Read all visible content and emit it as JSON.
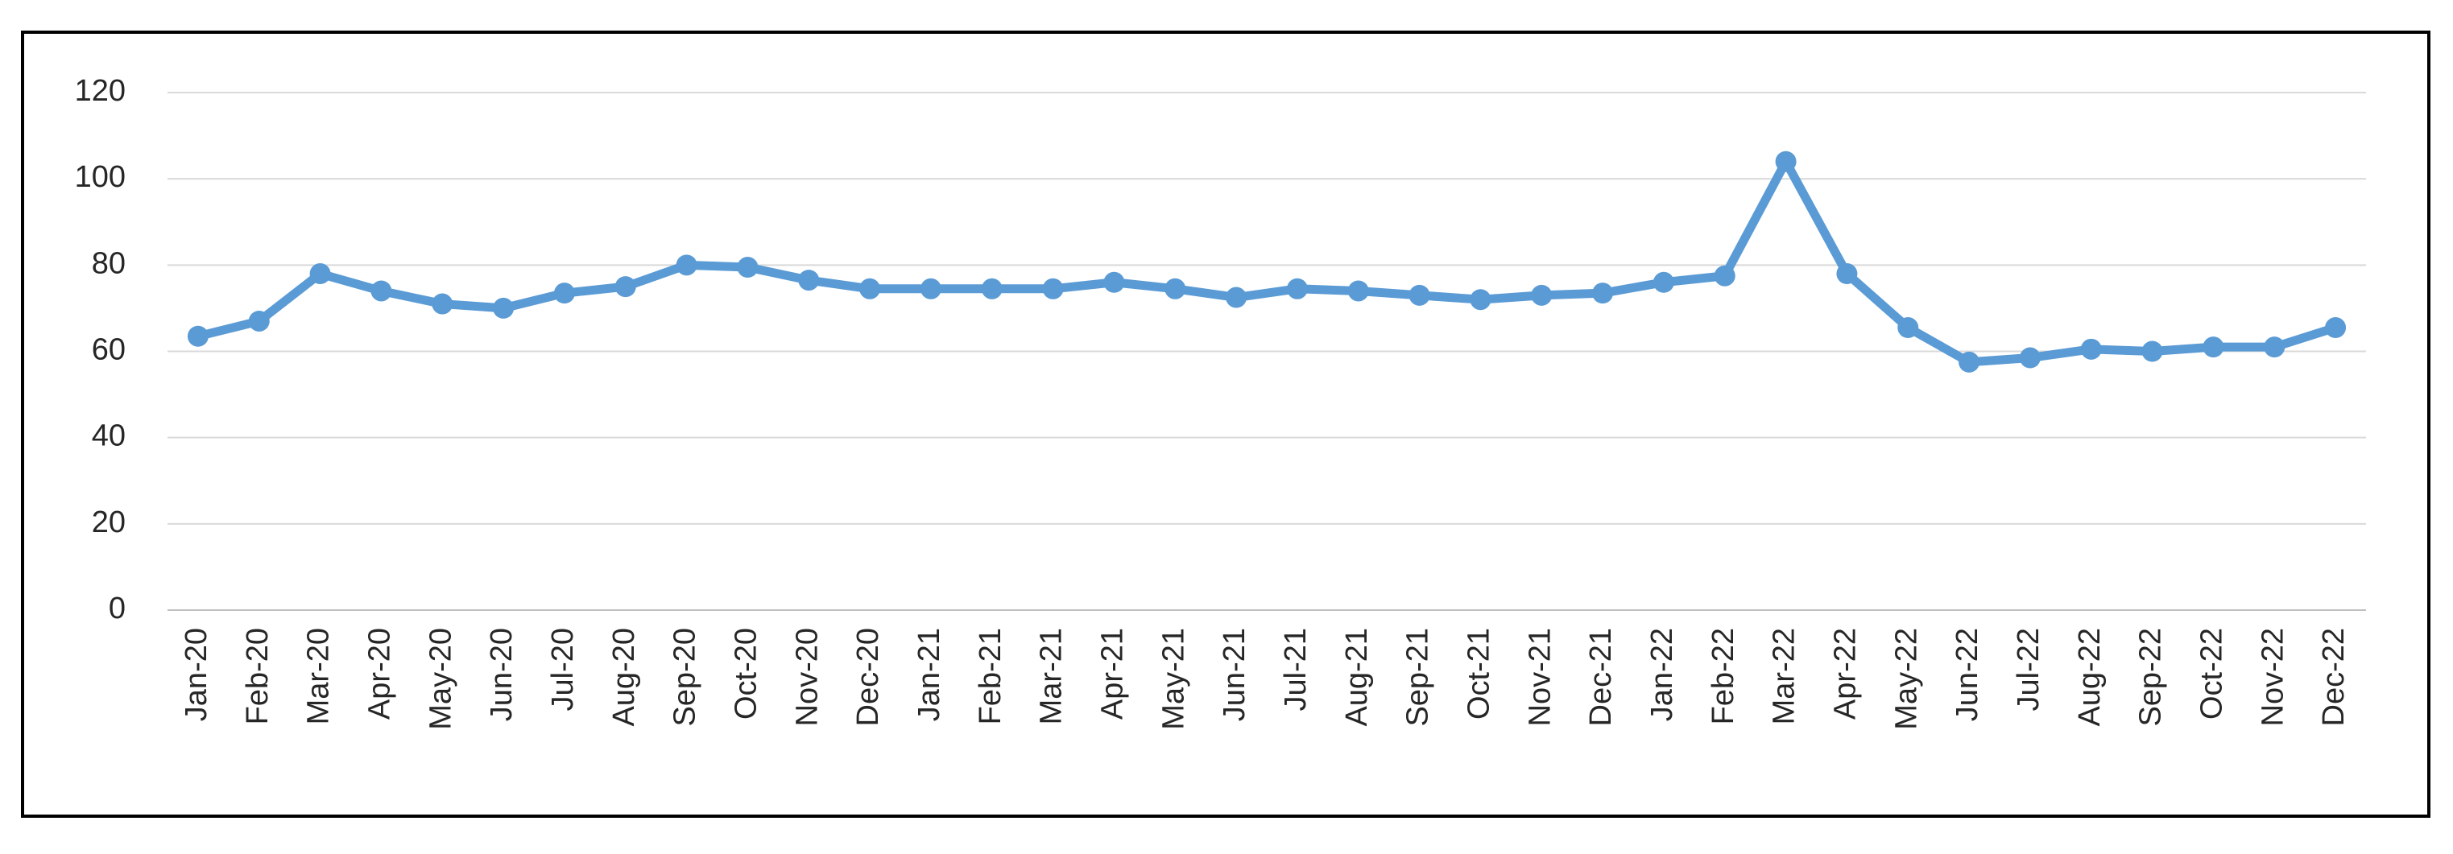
{
  "chart_data": {
    "type": "line",
    "categories": [
      "Jan-20",
      "Feb-20",
      "Mar-20",
      "Apr-20",
      "May-20",
      "Jun-20",
      "Jul-20",
      "Aug-20",
      "Sep-20",
      "Oct-20",
      "Nov-20",
      "Dec-20",
      "Jan-21",
      "Feb-21",
      "Mar-21",
      "Apr-21",
      "May-21",
      "Jun-21",
      "Jul-21",
      "Aug-21",
      "Sep-21",
      "Oct-21",
      "Nov-21",
      "Dec-21",
      "Jan-22",
      "Feb-22",
      "Mar-22",
      "Apr-22",
      "May-22",
      "Jun-22",
      "Jul-22",
      "Aug-22",
      "Sep-22",
      "Oct-22",
      "Nov-22",
      "Dec-22"
    ],
    "values": [
      63.5,
      67,
      78,
      74,
      71,
      70,
      73.5,
      75,
      80,
      79.5,
      76.5,
      74.5,
      74.5,
      74.5,
      74.5,
      76,
      74.5,
      72.5,
      74.5,
      74,
      73,
      72,
      73,
      73.5,
      76,
      77.5,
      104,
      78,
      65.5,
      57.5,
      58.5,
      60.5,
      60,
      61,
      61,
      65.5
    ],
    "color": "#5b9bd5",
    "ylim": [
      0,
      120
    ],
    "yticks": [
      0,
      20,
      40,
      60,
      80,
      100,
      120
    ],
    "grid": true
  }
}
